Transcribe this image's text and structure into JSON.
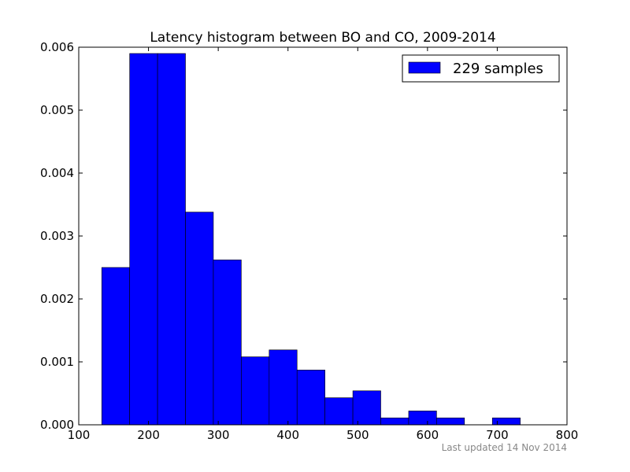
{
  "chart_data": {
    "type": "bar",
    "title": "Latency histogram between BO and CO, 2009-2014",
    "xlabel": "",
    "ylabel": "",
    "xlim": [
      100,
      800
    ],
    "ylim": [
      0,
      0.006
    ],
    "x_ticks": [
      "100",
      "200",
      "300",
      "400",
      "500",
      "600",
      "700",
      "800"
    ],
    "y_ticks": [
      "0.000",
      "0.001",
      "0.002",
      "0.003",
      "0.004",
      "0.005",
      "0.006"
    ],
    "grid": false,
    "legend_position": "top-right",
    "series": [
      {
        "name": "229 samples",
        "color": "#0000ff",
        "bins": [
          {
            "x0": 133,
            "x1": 173,
            "value": 0.0025
          },
          {
            "x0": 173,
            "x1": 213,
            "value": 0.0059
          },
          {
            "x0": 213,
            "x1": 253,
            "value": 0.0059
          },
          {
            "x0": 253,
            "x1": 293,
            "value": 0.00338
          },
          {
            "x0": 293,
            "x1": 333,
            "value": 0.00262
          },
          {
            "x0": 333,
            "x1": 373,
            "value": 0.00108
          },
          {
            "x0": 373,
            "x1": 413,
            "value": 0.00119
          },
          {
            "x0": 413,
            "x1": 453,
            "value": 0.00087
          },
          {
            "x0": 453,
            "x1": 493,
            "value": 0.00043
          },
          {
            "x0": 493,
            "x1": 533,
            "value": 0.00054
          },
          {
            "x0": 533,
            "x1": 573,
            "value": 0.00011
          },
          {
            "x0": 573,
            "x1": 613,
            "value": 0.00022
          },
          {
            "x0": 613,
            "x1": 653,
            "value": 0.00011
          },
          {
            "x0": 653,
            "x1": 693,
            "value": 0
          },
          {
            "x0": 693,
            "x1": 733,
            "value": 0.00011
          }
        ]
      }
    ]
  },
  "footer": {
    "note": "Last updated 14 Nov 2014"
  }
}
